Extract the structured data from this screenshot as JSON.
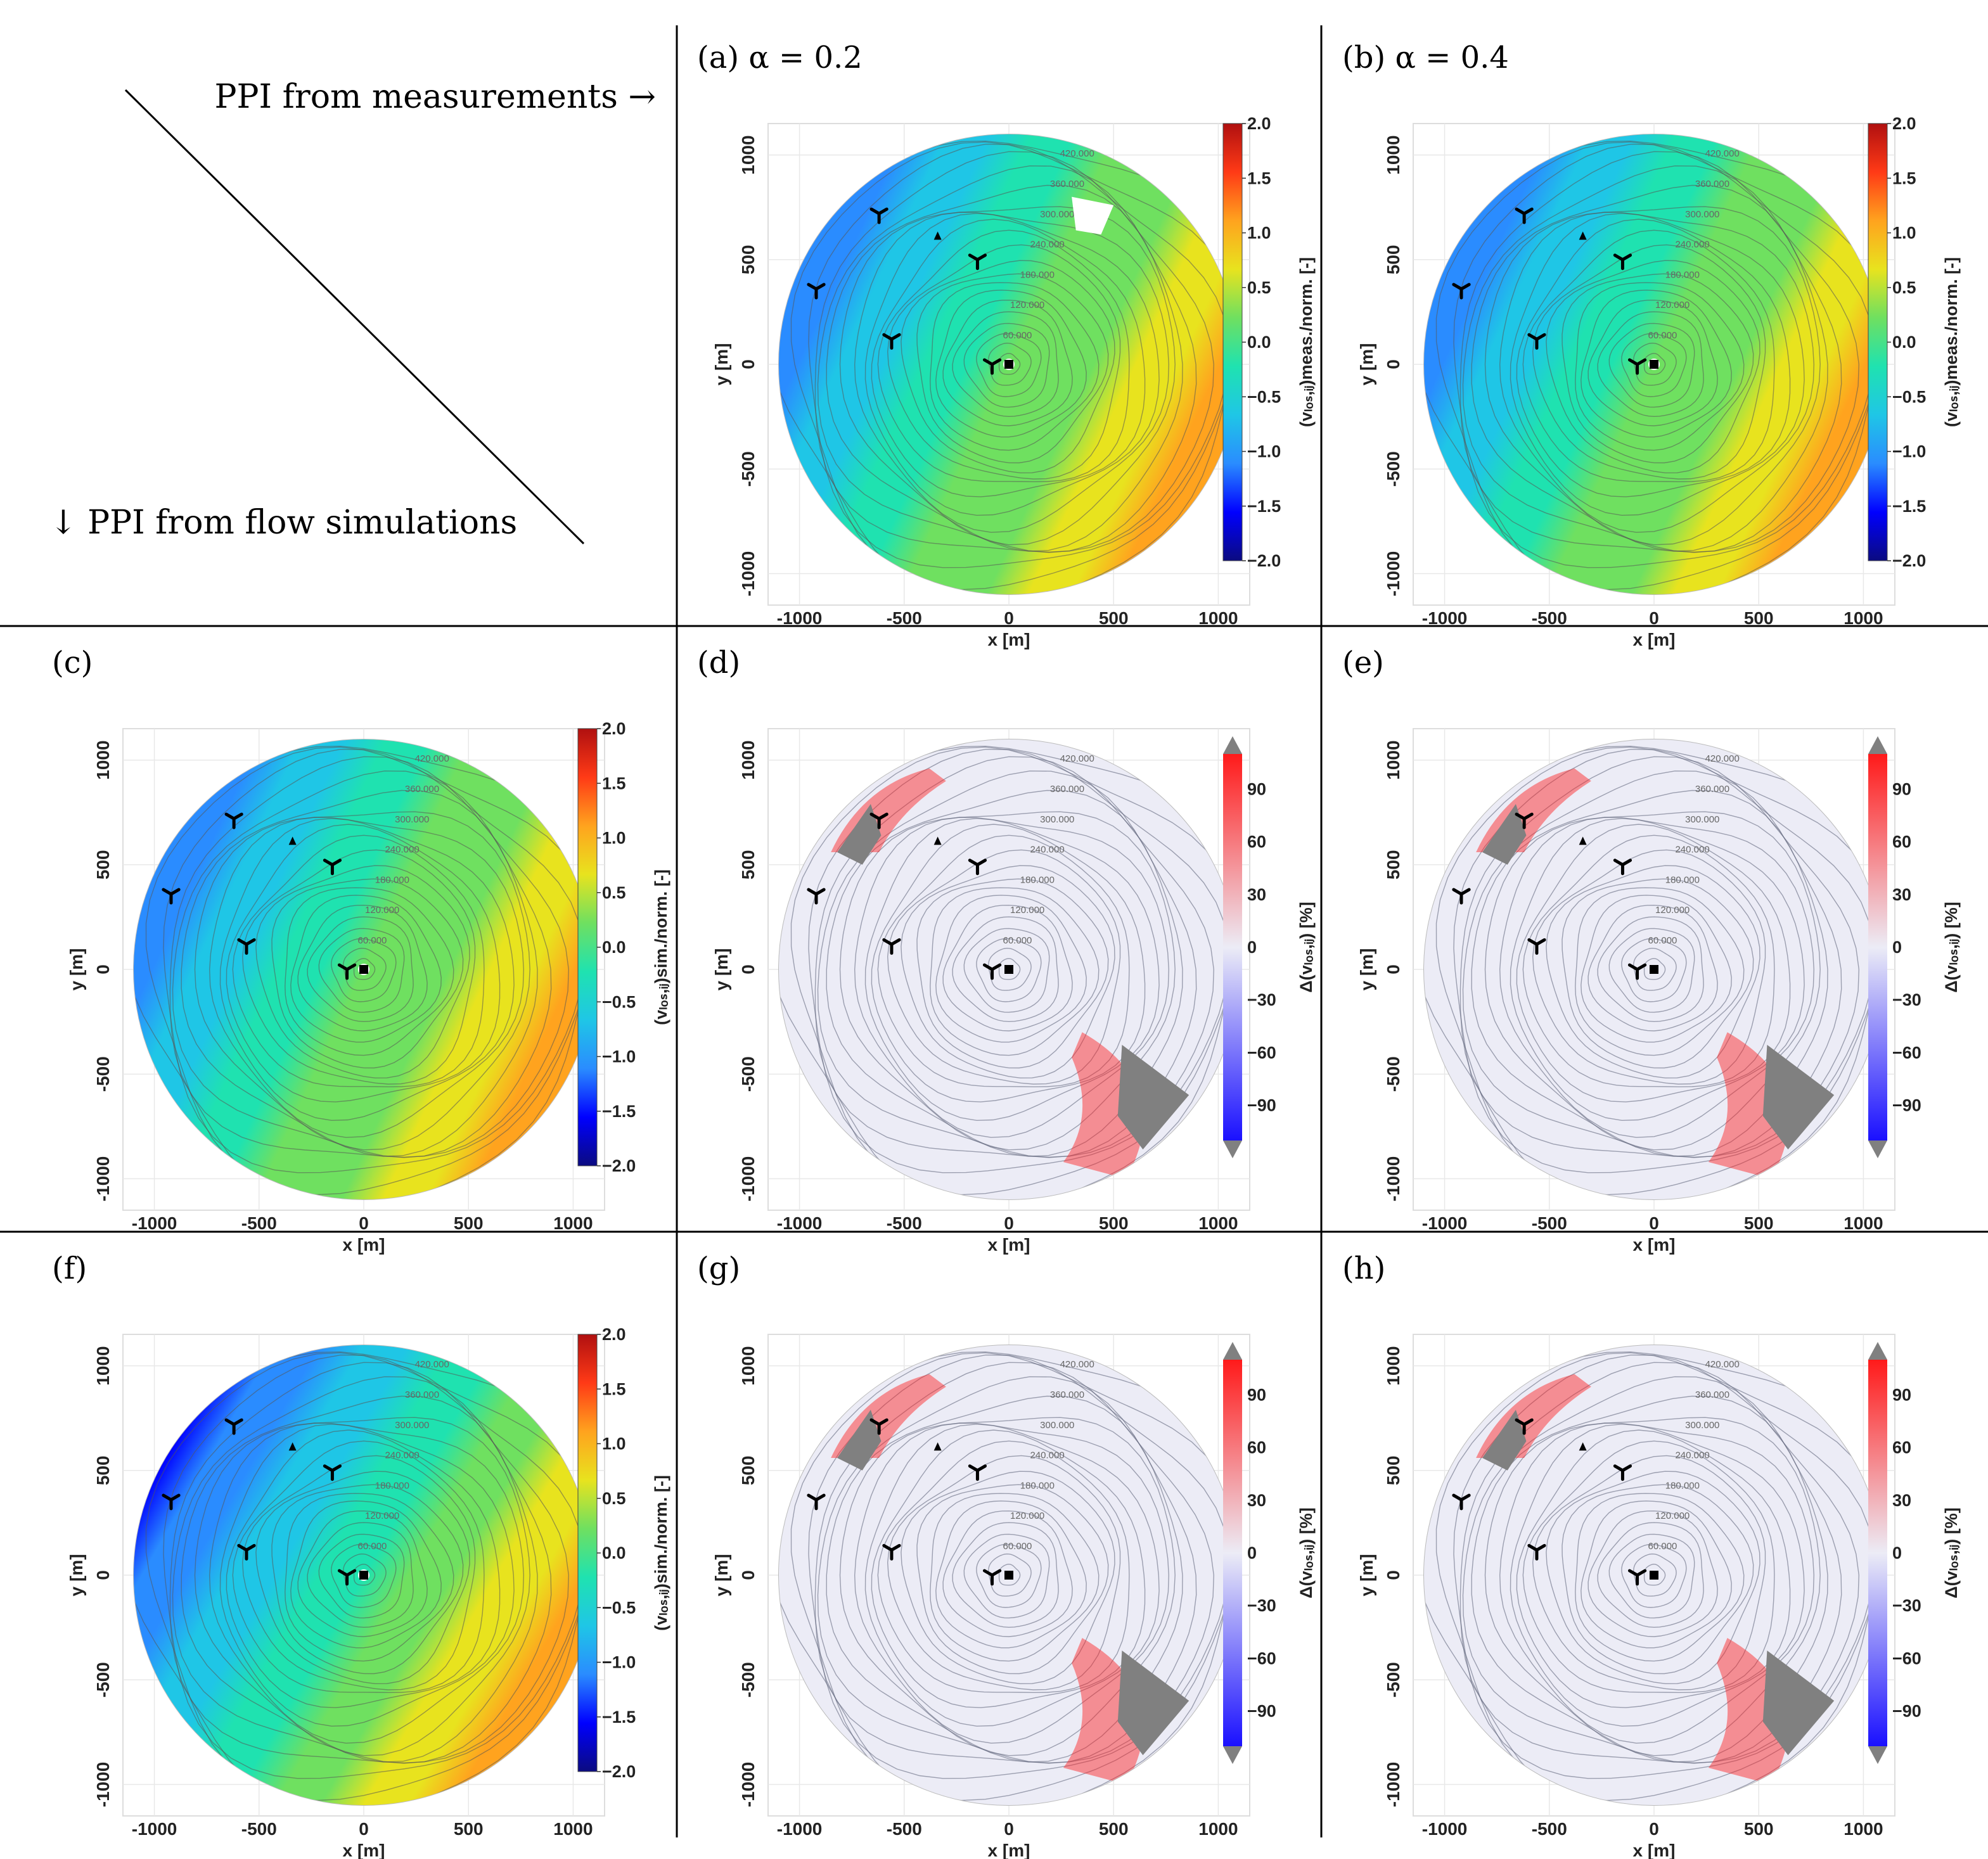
{
  "corner": {
    "top_label": "PPI from measurements →",
    "left_label": "↓ PPI from flow simulations"
  },
  "axes": {
    "xlabel": "x [m]",
    "ylabel": "y [m]",
    "xticks": [
      "-1000",
      "-500",
      "0",
      "500",
      "1000"
    ],
    "yticks": [
      "-1000",
      "-500",
      "0",
      "500",
      "1000"
    ],
    "xlim": [
      -1150,
      1150
    ],
    "ylim": [
      -1150,
      1150
    ],
    "radius": 1100
  },
  "colorbars": {
    "norm_ticks": [
      "2.0",
      "1.5",
      "1.0",
      "0.5",
      "0.0",
      "−0.5",
      "−1.0",
      "−1.5",
      "−2.0"
    ],
    "norm_range": [
      -2,
      2
    ],
    "delta_ticks": [
      "90",
      "60",
      "30",
      "0",
      "−30",
      "−60",
      "−90"
    ],
    "delta_range": [
      -110,
      110
    ],
    "delta_label": "Δ(vₗₒₛ,ᵢⱼ) [%]"
  },
  "colors": {
    "norm_stops": [
      "#0b0b80",
      "#0000ff",
      "#2a8cff",
      "#1fc6e6",
      "#1fe2b0",
      "#6fe060",
      "#e8e31e",
      "#ffa31e",
      "#ff3a16",
      "#b01010"
    ],
    "delta_neg": "#1a10ff",
    "delta_zero": "#ececf6",
    "delta_pos": "#ff1a1a",
    "masked": "#808080",
    "contour": "#555555"
  },
  "turbines": [
    [
      -620,
      720
    ],
    [
      -920,
      360
    ],
    [
      -560,
      120
    ],
    [
      -150,
      500
    ],
    [
      -80,
      0
    ]
  ],
  "met_mast": [
    -340,
    610
  ],
  "lidar": [
    0,
    0
  ],
  "contour_labels": [
    "420.000",
    "360.000",
    "300.000",
    "240.000",
    "180.000",
    "120.000",
    "60.000"
  ],
  "chart_data": [
    {
      "id": "a",
      "type": "heatmap",
      "field": "normalized",
      "title": "(a)  α = 0.2",
      "colorbar_label": "(vₗₒₛ,ᵢⱼ)meas./norm. [-]",
      "gradient_angle_deg": 205,
      "value_range": [
        -1.2,
        1.2
      ],
      "has_gap": true
    },
    {
      "id": "b",
      "type": "heatmap",
      "field": "normalized",
      "title": "(b)  α = 0.4",
      "colorbar_label": "(vₗₒₛ,ᵢⱼ)meas./norm. [-]",
      "gradient_angle_deg": 205,
      "value_range": [
        -1.2,
        1.2
      ],
      "has_gap": false
    },
    {
      "id": "c",
      "type": "heatmap",
      "field": "normalized",
      "title": "(c)",
      "colorbar_label": "(vₗₒₛ,ᵢⱼ)sim./norm. [-]",
      "gradient_angle_deg": 205,
      "value_range": [
        -1.2,
        1.2
      ],
      "has_gap": false
    },
    {
      "id": "d",
      "type": "heatmap",
      "field": "delta",
      "title": "(d)",
      "colorbar_label": "Δ(vₗₒₛ,ᵢⱼ) [%]",
      "value_range": [
        0,
        100
      ]
    },
    {
      "id": "e",
      "type": "heatmap",
      "field": "delta",
      "title": "(e)",
      "colorbar_label": "Δ(vₗₒₛ,ᵢⱼ) [%]",
      "value_range": [
        0,
        100
      ]
    },
    {
      "id": "f",
      "type": "heatmap",
      "field": "normalized",
      "title": "(f)",
      "colorbar_label": "(vₗₒₛ,ᵢⱼ)sim./norm. [-]",
      "gradient_angle_deg": 210,
      "value_range": [
        -1.4,
        1.2
      ],
      "has_gap": false
    },
    {
      "id": "g",
      "type": "heatmap",
      "field": "delta",
      "title": "(g)",
      "colorbar_label": "Δ(vₗₒₛ,ᵢⱼ) [%]",
      "value_range": [
        0,
        100
      ]
    },
    {
      "id": "h",
      "type": "heatmap",
      "field": "delta",
      "title": "(h)",
      "colorbar_label": "Δ(vₗₒₛ,ᵢⱼ) [%]",
      "value_range": [
        0,
        100
      ]
    }
  ]
}
